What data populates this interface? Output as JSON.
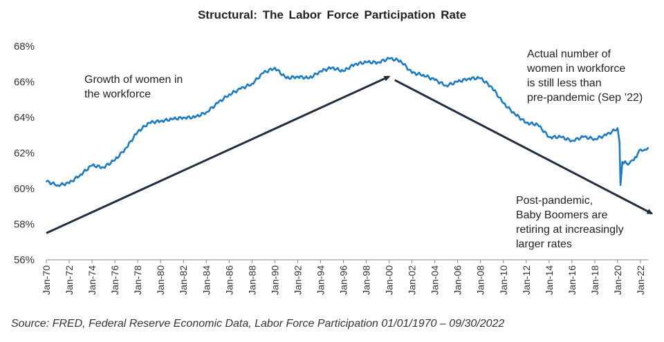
{
  "chart_data": {
    "type": "line",
    "title": "Structural:  The Labor Force Participation  Rate",
    "xlabel": "",
    "ylabel": "",
    "ylim": [
      56,
      68
    ],
    "y_ticks": [
      "56%",
      "58%",
      "60%",
      "62%",
      "64%",
      "66%",
      "68%"
    ],
    "x_ticks": [
      "Jan-70",
      "Jan-72",
      "Jan-74",
      "Jan-76",
      "Jan-78",
      "Jan-80",
      "Jan-82",
      "Jan-84",
      "Jan-86",
      "Jan-88",
      "Jan-90",
      "Jan-92",
      "Jan-94",
      "Jan-96",
      "Jan-98",
      "Jan-00",
      "Jan-02",
      "Jan-04",
      "Jan-06",
      "Jan-08",
      "Jan-10",
      "Jan-12",
      "Jan-14",
      "Jan-16",
      "Jan-18",
      "Jan-20",
      "Jan-22"
    ],
    "x_range": [
      "1970-01",
      "2022-09"
    ],
    "grid": false,
    "line_color": "#1a7bc4",
    "series": [
      {
        "x": [
          "1970-01",
          "1971-01",
          "1972-01",
          "1973-01",
          "1974-01",
          "1975-01",
          "1976-01",
          "1977-01",
          "1978-01",
          "1979-01",
          "1980-01",
          "1981-01",
          "1982-01",
          "1983-01",
          "1984-01",
          "1985-01",
          "1986-01",
          "1987-01",
          "1988-01",
          "1989-01",
          "1990-01",
          "1991-01",
          "1992-01",
          "1993-01",
          "1994-01",
          "1995-01",
          "1996-01",
          "1997-01",
          "1998-01",
          "1999-01",
          "2000-01",
          "2001-01",
          "2002-01",
          "2003-01",
          "2004-01",
          "2005-01",
          "2006-01",
          "2007-01",
          "2008-01",
          "2009-01",
          "2010-01",
          "2011-01",
          "2012-01",
          "2013-01",
          "2014-01",
          "2015-01",
          "2016-01",
          "2017-01",
          "2018-01",
          "2019-01",
          "2020-01",
          "2020-03",
          "2020-04",
          "2020-06",
          "2021-01",
          "2021-06",
          "2022-01",
          "2022-06",
          "2022-09"
        ],
        "values": [
          60.4,
          60.2,
          60.3,
          60.8,
          61.3,
          61.2,
          61.6,
          62.3,
          63.2,
          63.7,
          63.8,
          63.9,
          64.0,
          64.0,
          64.3,
          64.8,
          65.3,
          65.6,
          65.9,
          66.5,
          66.8,
          66.2,
          66.3,
          66.2,
          66.6,
          66.8,
          66.6,
          67.0,
          67.1,
          67.1,
          67.3,
          67.2,
          66.5,
          66.4,
          66.1,
          65.8,
          66.0,
          66.2,
          66.2,
          65.7,
          64.8,
          64.2,
          63.7,
          63.6,
          62.9,
          62.9,
          62.7,
          62.9,
          62.8,
          63.0,
          63.4,
          62.6,
          60.2,
          61.5,
          61.4,
          61.6,
          62.2,
          62.2,
          62.3
        ]
      }
    ],
    "annotations": [
      {
        "text": "Growth of women in\nthe workforce"
      },
      {
        "text": "Actual number of\nwomen in workforce\nis still less than\npre-pandemic (Sep ’22)"
      },
      {
        "text": "Post-pandemic,\nBaby Boomers are\nretiring at increasingly\nlarger rates"
      }
    ],
    "arrows": [
      {
        "label": "up-trend",
        "from": [
          "1970-01",
          57.5
        ],
        "to": [
          "2000-01",
          66.3
        ]
      },
      {
        "label": "down-trend",
        "from": [
          "2000-07",
          66.1
        ],
        "to": [
          "2023-01",
          58.6
        ]
      }
    ],
    "arrow_color": "#1f2d3d"
  },
  "source": "Source: FRED, Federal Reserve Economic Data, Labor Force Participation 01/01/1970 – 09/30/2022"
}
